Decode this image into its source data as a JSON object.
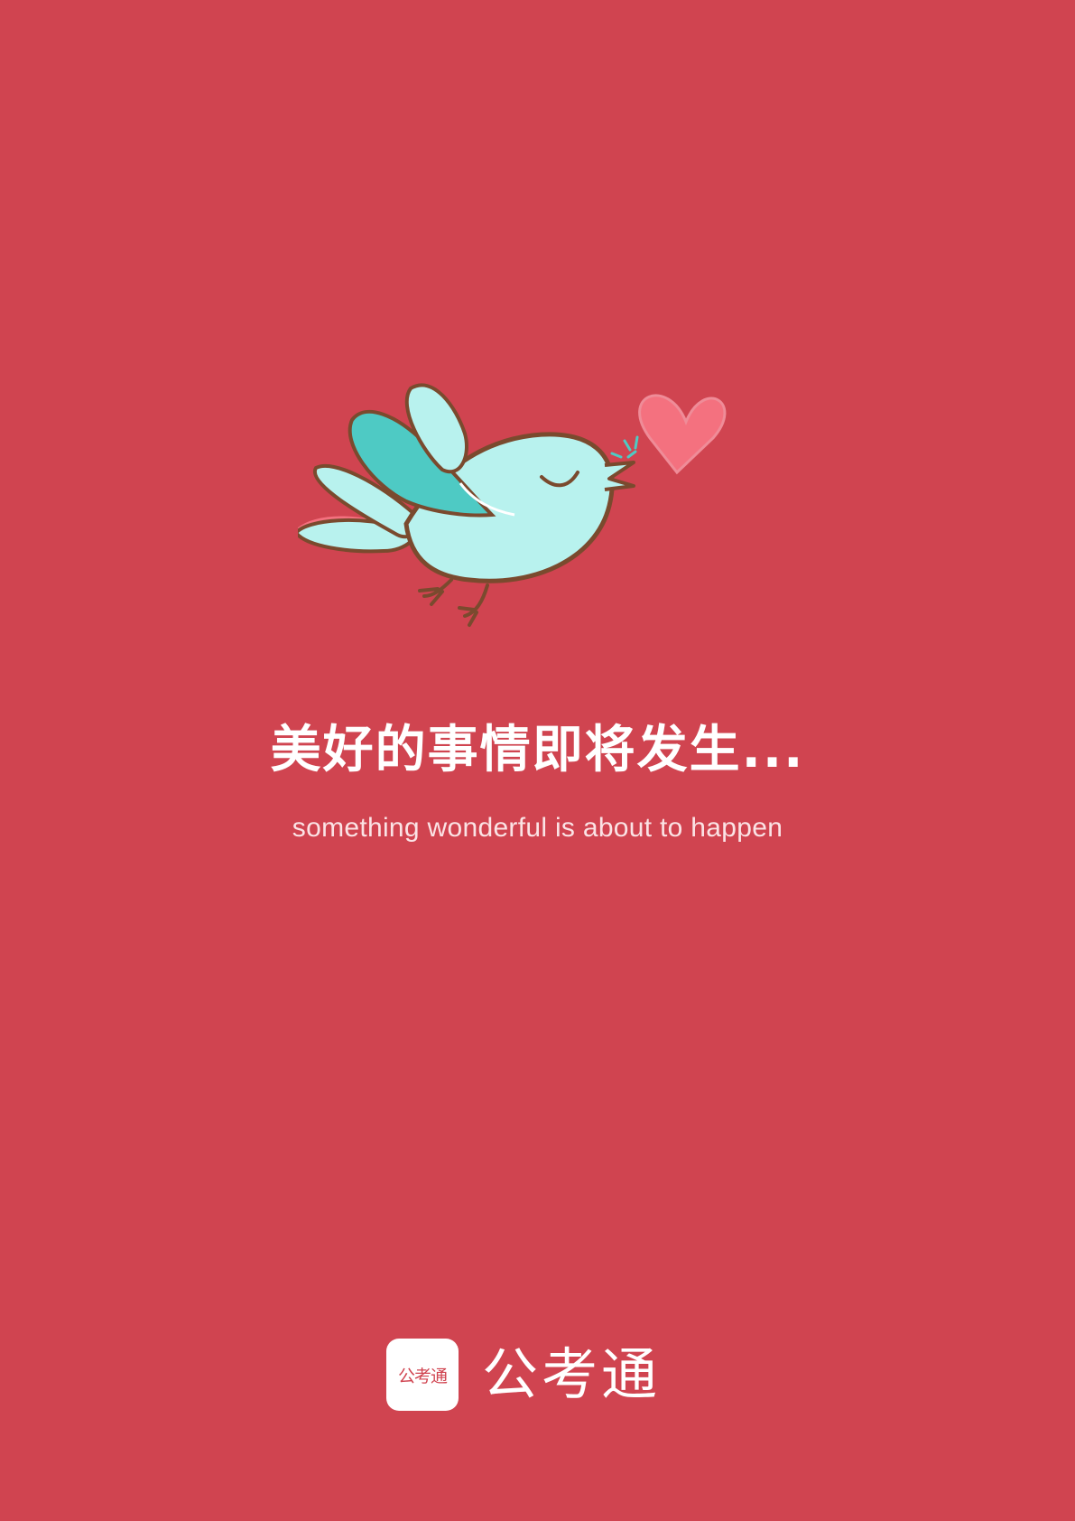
{
  "headline": "美好的事情即将发生...",
  "subline": "something wonderful is about to happen",
  "brand": {
    "icon_text": "公考通",
    "name": "公考通"
  },
  "colors": {
    "background": "#d04450",
    "bird_body": "#b8f2ee",
    "bird_wing": "#4ecac4",
    "outline": "#7a4a2e",
    "heart": "#f4717f",
    "text": "#ffffff"
  },
  "icons": [
    "bird-illustration",
    "heart-icon",
    "app-logo-icon"
  ]
}
